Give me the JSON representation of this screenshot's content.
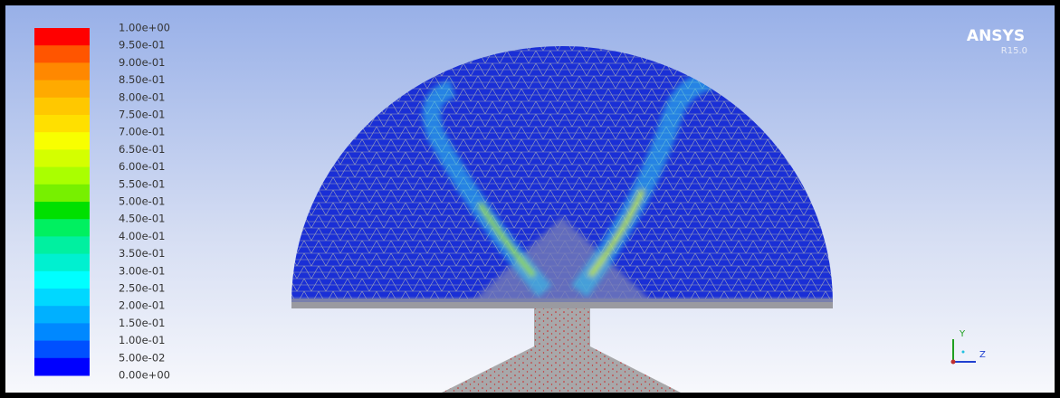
{
  "legend": {
    "labels": [
      "1.00e+00",
      "9.50e-01",
      "9.00e-01",
      "8.50e-01",
      "8.00e-01",
      "7.50e-01",
      "7.00e-01",
      "6.50e-01",
      "6.00e-01",
      "5.50e-01",
      "5.00e-01",
      "4.50e-01",
      "4.00e-01",
      "3.50e-01",
      "3.00e-01",
      "2.50e-01",
      "2.00e-01",
      "1.50e-01",
      "1.00e-01",
      "5.00e-02",
      "0.00e+00"
    ],
    "colors": [
      "#ff0000",
      "#ff5500",
      "#ff8800",
      "#ffaa00",
      "#ffc800",
      "#ffe000",
      "#f8ff00",
      "#d4ff00",
      "#aaff00",
      "#77f000",
      "#00e000",
      "#00f060",
      "#00f0a0",
      "#00f0d0",
      "#00ffff",
      "#00d8ff",
      "#00b0ff",
      "#0088ff",
      "#0050ff",
      "#0000ff"
    ]
  },
  "brand": {
    "name": "ANSYS",
    "version": "R15.0"
  },
  "axes": {
    "y": "Y",
    "z": "Z"
  }
}
